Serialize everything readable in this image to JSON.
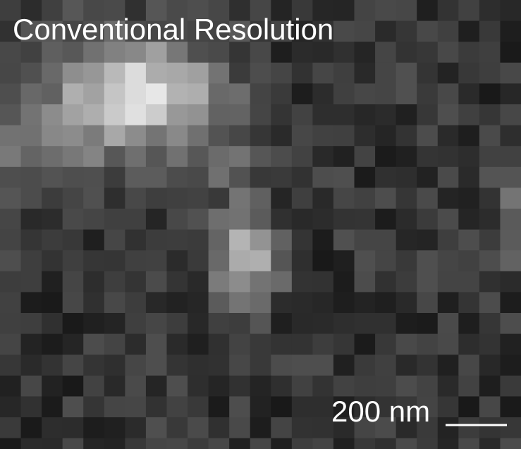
{
  "image": {
    "title": "Conventional Resolution",
    "scale_bar": {
      "label": "200 nm"
    }
  }
}
